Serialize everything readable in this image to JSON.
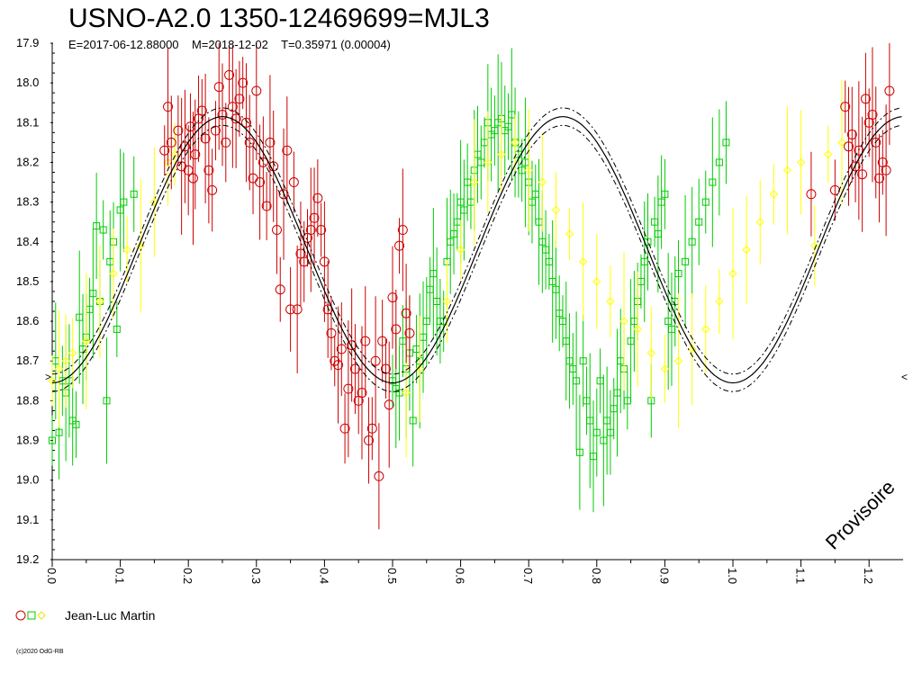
{
  "chart_data": {
    "type": "scatter",
    "title": "USNO-A2.0 1350-12469699=MJL3",
    "subtitle": "E=2017-06-12.88000    M=2018-12-02    T=0.35971 (0.00004)",
    "watermark": "Provisoire",
    "copyright": "(c)2020 OdG-RB",
    "xlim": [
      0.0,
      1.25
    ],
    "ylim": [
      17.9,
      19.2
    ],
    "y_inverted": true,
    "x_ticks": [
      "0.0",
      "0.1",
      "0.2",
      "0.3",
      "0.4",
      "0.5",
      "0.6",
      "0.7",
      "0.8",
      "0.9",
      "1.0",
      "1.1",
      "1.2"
    ],
    "y_ticks": [
      "17.9",
      "18.0",
      "18.1",
      "18.2",
      "18.3",
      "18.4",
      "18.5",
      "18.6",
      "18.7",
      "18.8",
      "18.9",
      "19.0",
      "19.1",
      "19.2"
    ],
    "legend": {
      "label": "Jean-Luc Martin",
      "placement": "bottom-left"
    },
    "fit_curve": {
      "mean_mag": 18.42,
      "amplitude": 0.335,
      "envelope": 0.022
    },
    "colors": {
      "series_a": "#cc0000",
      "series_b": "#00cc00",
      "series_c": "#ffff00",
      "curve": "#000000"
    },
    "series": [
      {
        "marker": "circle",
        "color": "#cc0000",
        "points": [
          [
            0.165,
            18.17
          ],
          [
            0.17,
            18.06
          ],
          [
            0.175,
            18.15
          ],
          [
            0.185,
            18.12
          ],
          [
            0.19,
            18.21
          ],
          [
            0.195,
            18.16
          ],
          [
            0.2,
            18.22
          ],
          [
            0.203,
            18.11
          ],
          [
            0.207,
            18.24
          ],
          [
            0.21,
            18.18
          ],
          [
            0.215,
            18.09
          ],
          [
            0.22,
            18.07
          ],
          [
            0.225,
            18.14
          ],
          [
            0.23,
            18.22
          ],
          [
            0.235,
            18.27
          ],
          [
            0.24,
            18.12
          ],
          [
            0.245,
            18.01
          ],
          [
            0.25,
            18.08
          ],
          [
            0.255,
            18.15
          ],
          [
            0.26,
            17.98
          ],
          [
            0.265,
            18.06
          ],
          [
            0.27,
            18.09
          ],
          [
            0.275,
            18.04
          ],
          [
            0.28,
            18.0
          ],
          [
            0.285,
            18.1
          ],
          [
            0.29,
            18.15
          ],
          [
            0.295,
            18.24
          ],
          [
            0.3,
            18.02
          ],
          [
            0.305,
            18.25
          ],
          [
            0.31,
            18.2
          ],
          [
            0.315,
            18.31
          ],
          [
            0.32,
            18.15
          ],
          [
            0.325,
            18.21
          ],
          [
            0.33,
            18.37
          ],
          [
            0.335,
            18.52
          ],
          [
            0.34,
            18.28
          ],
          [
            0.345,
            18.17
          ],
          [
            0.35,
            18.57
          ],
          [
            0.355,
            18.25
          ],
          [
            0.36,
            18.57
          ],
          [
            0.365,
            18.43
          ],
          [
            0.37,
            18.45
          ],
          [
            0.375,
            18.39
          ],
          [
            0.38,
            18.37
          ],
          [
            0.385,
            18.34
          ],
          [
            0.39,
            18.29
          ],
          [
            0.395,
            18.37
          ],
          [
            0.4,
            18.45
          ],
          [
            0.405,
            18.57
          ],
          [
            0.41,
            18.63
          ],
          [
            0.415,
            18.7
          ],
          [
            0.42,
            18.71
          ],
          [
            0.425,
            18.67
          ],
          [
            0.43,
            18.87
          ],
          [
            0.435,
            18.77
          ],
          [
            0.44,
            18.66
          ],
          [
            0.445,
            18.72
          ],
          [
            0.45,
            18.8
          ],
          [
            0.455,
            18.78
          ],
          [
            0.46,
            18.65
          ],
          [
            0.465,
            18.9
          ],
          [
            0.47,
            18.87
          ],
          [
            0.475,
            18.7
          ],
          [
            0.48,
            18.99
          ],
          [
            0.485,
            18.65
          ],
          [
            0.49,
            18.72
          ],
          [
            0.495,
            18.81
          ],
          [
            0.5,
            18.54
          ],
          [
            0.505,
            18.62
          ],
          [
            0.51,
            18.41
          ],
          [
            0.515,
            18.37
          ],
          [
            0.52,
            18.58
          ],
          [
            0.525,
            18.63
          ],
          [
            1.165,
            18.06
          ],
          [
            1.17,
            18.16
          ],
          [
            1.175,
            18.13
          ],
          [
            1.18,
            18.21
          ],
          [
            1.185,
            18.17
          ],
          [
            1.19,
            18.23
          ],
          [
            1.195,
            18.04
          ],
          [
            1.2,
            18.1
          ],
          [
            1.205,
            18.08
          ],
          [
            1.21,
            18.15
          ],
          [
            1.215,
            18.24
          ],
          [
            1.22,
            18.2
          ],
          [
            1.225,
            18.22
          ],
          [
            1.23,
            18.02
          ],
          [
            1.115,
            18.28
          ],
          [
            1.15,
            18.27
          ]
        ]
      },
      {
        "marker": "square",
        "color": "#00cc00",
        "points": [
          [
            0.0,
            18.9
          ],
          [
            0.005,
            18.7
          ],
          [
            0.01,
            18.88
          ],
          [
            0.015,
            18.75
          ],
          [
            0.02,
            18.78
          ],
          [
            0.025,
            18.75
          ],
          [
            0.03,
            18.85
          ],
          [
            0.035,
            18.86
          ],
          [
            0.04,
            18.59
          ],
          [
            0.045,
            18.67
          ],
          [
            0.05,
            18.64
          ],
          [
            0.055,
            18.57
          ],
          [
            0.06,
            18.53
          ],
          [
            0.065,
            18.36
          ],
          [
            0.07,
            18.55
          ],
          [
            0.075,
            18.37
          ],
          [
            0.08,
            18.8
          ],
          [
            0.085,
            18.45
          ],
          [
            0.09,
            18.4
          ],
          [
            0.095,
            18.62
          ],
          [
            0.1,
            18.32
          ],
          [
            0.105,
            18.3
          ],
          [
            0.12,
            18.28
          ],
          [
            0.5,
            18.75
          ],
          [
            0.505,
            18.77
          ],
          [
            0.51,
            18.78
          ],
          [
            0.515,
            18.65
          ],
          [
            0.52,
            18.72
          ],
          [
            0.525,
            18.68
          ],
          [
            0.53,
            18.85
          ],
          [
            0.535,
            18.67
          ],
          [
            0.54,
            18.7
          ],
          [
            0.545,
            18.64
          ],
          [
            0.55,
            18.6
          ],
          [
            0.555,
            18.52
          ],
          [
            0.56,
            18.48
          ],
          [
            0.565,
            18.55
          ],
          [
            0.57,
            18.6
          ],
          [
            0.575,
            18.6
          ],
          [
            0.58,
            18.45
          ],
          [
            0.585,
            18.4
          ],
          [
            0.59,
            18.38
          ],
          [
            0.595,
            18.35
          ],
          [
            0.6,
            18.3
          ],
          [
            0.605,
            18.32
          ],
          [
            0.61,
            18.25
          ],
          [
            0.615,
            18.3
          ],
          [
            0.62,
            18.22
          ],
          [
            0.625,
            18.18
          ],
          [
            0.63,
            18.2
          ],
          [
            0.635,
            18.15
          ],
          [
            0.64,
            18.1
          ],
          [
            0.645,
            18.13
          ],
          [
            0.65,
            18.12
          ],
          [
            0.655,
            18.1
          ],
          [
            0.66,
            18.09
          ],
          [
            0.665,
            18.12
          ],
          [
            0.67,
            18.11
          ],
          [
            0.675,
            18.08
          ],
          [
            0.68,
            18.15
          ],
          [
            0.685,
            18.18
          ],
          [
            0.69,
            18.22
          ],
          [
            0.695,
            18.2
          ],
          [
            0.7,
            18.25
          ],
          [
            0.705,
            18.3
          ],
          [
            0.71,
            18.28
          ],
          [
            0.715,
            18.35
          ],
          [
            0.72,
            18.4
          ],
          [
            0.725,
            18.42
          ],
          [
            0.73,
            18.45
          ],
          [
            0.735,
            18.5
          ],
          [
            0.74,
            18.52
          ],
          [
            0.745,
            18.58
          ],
          [
            0.75,
            18.6
          ],
          [
            0.755,
            18.65
          ],
          [
            0.76,
            18.7
          ],
          [
            0.765,
            18.72
          ],
          [
            0.77,
            18.75
          ],
          [
            0.775,
            18.93
          ],
          [
            0.78,
            18.7
          ],
          [
            0.785,
            18.8
          ],
          [
            0.79,
            18.85
          ],
          [
            0.795,
            18.94
          ],
          [
            0.8,
            18.88
          ],
          [
            0.805,
            18.75
          ],
          [
            0.81,
            18.9
          ],
          [
            0.815,
            18.85
          ],
          [
            0.82,
            18.88
          ],
          [
            0.825,
            18.82
          ],
          [
            0.83,
            18.78
          ],
          [
            0.835,
            18.7
          ],
          [
            0.84,
            18.72
          ],
          [
            0.845,
            18.8
          ],
          [
            0.85,
            18.65
          ],
          [
            0.855,
            18.6
          ],
          [
            0.86,
            18.55
          ],
          [
            0.865,
            18.5
          ],
          [
            0.87,
            18.45
          ],
          [
            0.875,
            18.4
          ],
          [
            0.88,
            18.8
          ],
          [
            0.885,
            18.35
          ],
          [
            0.89,
            18.38
          ],
          [
            0.895,
            18.3
          ],
          [
            0.9,
            18.28
          ],
          [
            0.905,
            18.6
          ],
          [
            0.91,
            18.62
          ],
          [
            0.915,
            18.55
          ],
          [
            0.92,
            18.48
          ],
          [
            0.93,
            18.45
          ],
          [
            0.94,
            18.4
          ],
          [
            0.95,
            18.35
          ],
          [
            0.96,
            18.3
          ],
          [
            0.97,
            18.25
          ],
          [
            0.98,
            18.2
          ],
          [
            0.99,
            18.15
          ]
        ]
      },
      {
        "marker": "diamond",
        "color": "#ffff00",
        "points": [
          [
            0.0,
            18.75
          ],
          [
            0.01,
            18.72
          ],
          [
            0.02,
            18.7
          ],
          [
            0.03,
            18.68
          ],
          [
            0.05,
            18.65
          ],
          [
            0.07,
            18.55
          ],
          [
            0.09,
            18.48
          ],
          [
            0.11,
            18.42
          ],
          [
            0.13,
            18.41
          ],
          [
            0.15,
            18.3
          ],
          [
            0.17,
            18.2
          ],
          [
            0.18,
            18.18
          ],
          [
            0.52,
            18.78
          ],
          [
            0.54,
            18.72
          ],
          [
            0.58,
            18.55
          ],
          [
            0.6,
            18.42
          ],
          [
            0.62,
            18.25
          ],
          [
            0.64,
            18.2
          ],
          [
            0.66,
            18.18
          ],
          [
            0.68,
            18.15
          ],
          [
            0.7,
            18.22
          ],
          [
            0.72,
            18.25
          ],
          [
            0.74,
            18.32
          ],
          [
            0.76,
            18.38
          ],
          [
            0.78,
            18.45
          ],
          [
            0.8,
            18.5
          ],
          [
            0.82,
            18.55
          ],
          [
            0.84,
            18.6
          ],
          [
            0.86,
            18.62
          ],
          [
            0.88,
            18.68
          ],
          [
            0.9,
            18.72
          ],
          [
            0.92,
            18.7
          ],
          [
            0.94,
            18.67
          ],
          [
            0.96,
            18.62
          ],
          [
            0.98,
            18.55
          ],
          [
            1.0,
            18.48
          ],
          [
            1.02,
            18.42
          ],
          [
            1.04,
            18.35
          ],
          [
            1.06,
            18.28
          ],
          [
            1.08,
            18.22
          ],
          [
            1.1,
            18.2
          ],
          [
            1.12,
            18.41
          ],
          [
            1.14,
            18.18
          ],
          [
            1.16,
            18.15
          ]
        ]
      }
    ]
  }
}
